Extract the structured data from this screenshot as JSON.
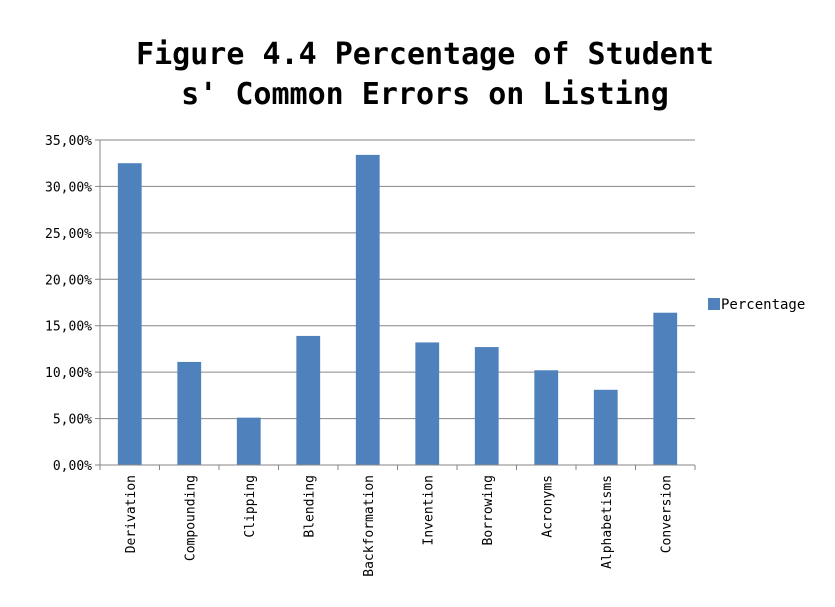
{
  "chart_data": {
    "type": "bar",
    "title_lines": [
      "Figure 4.4 Percentage of Student",
      "s' Common Errors on Listing"
    ],
    "xlabel": "",
    "ylabel": "",
    "categories": [
      "Derivation",
      "Compounding",
      "Clipping",
      "Blending",
      "Backformation",
      "Invention",
      "Borrowing",
      "Acronyms",
      "Alphabetisms",
      "Conversion"
    ],
    "series": [
      {
        "name": "Percentage",
        "values": [
          32.5,
          11.1,
          5.1,
          13.9,
          33.4,
          13.2,
          12.7,
          10.2,
          8.1,
          16.4
        ]
      }
    ],
    "ylim": [
      0,
      35
    ],
    "yticks": [
      0,
      5,
      10,
      15,
      20,
      25,
      30,
      35
    ],
    "ytick_labels": [
      "0,00%",
      "5,00%",
      "10,00%",
      "15,00%",
      "20,00%",
      "25,00%",
      "30,00%",
      "35,00%"
    ],
    "grid": true,
    "legend_position": "right",
    "colors": {
      "bar": "#4f81bd",
      "grid": "#868686",
      "axis": "#868686"
    }
  }
}
